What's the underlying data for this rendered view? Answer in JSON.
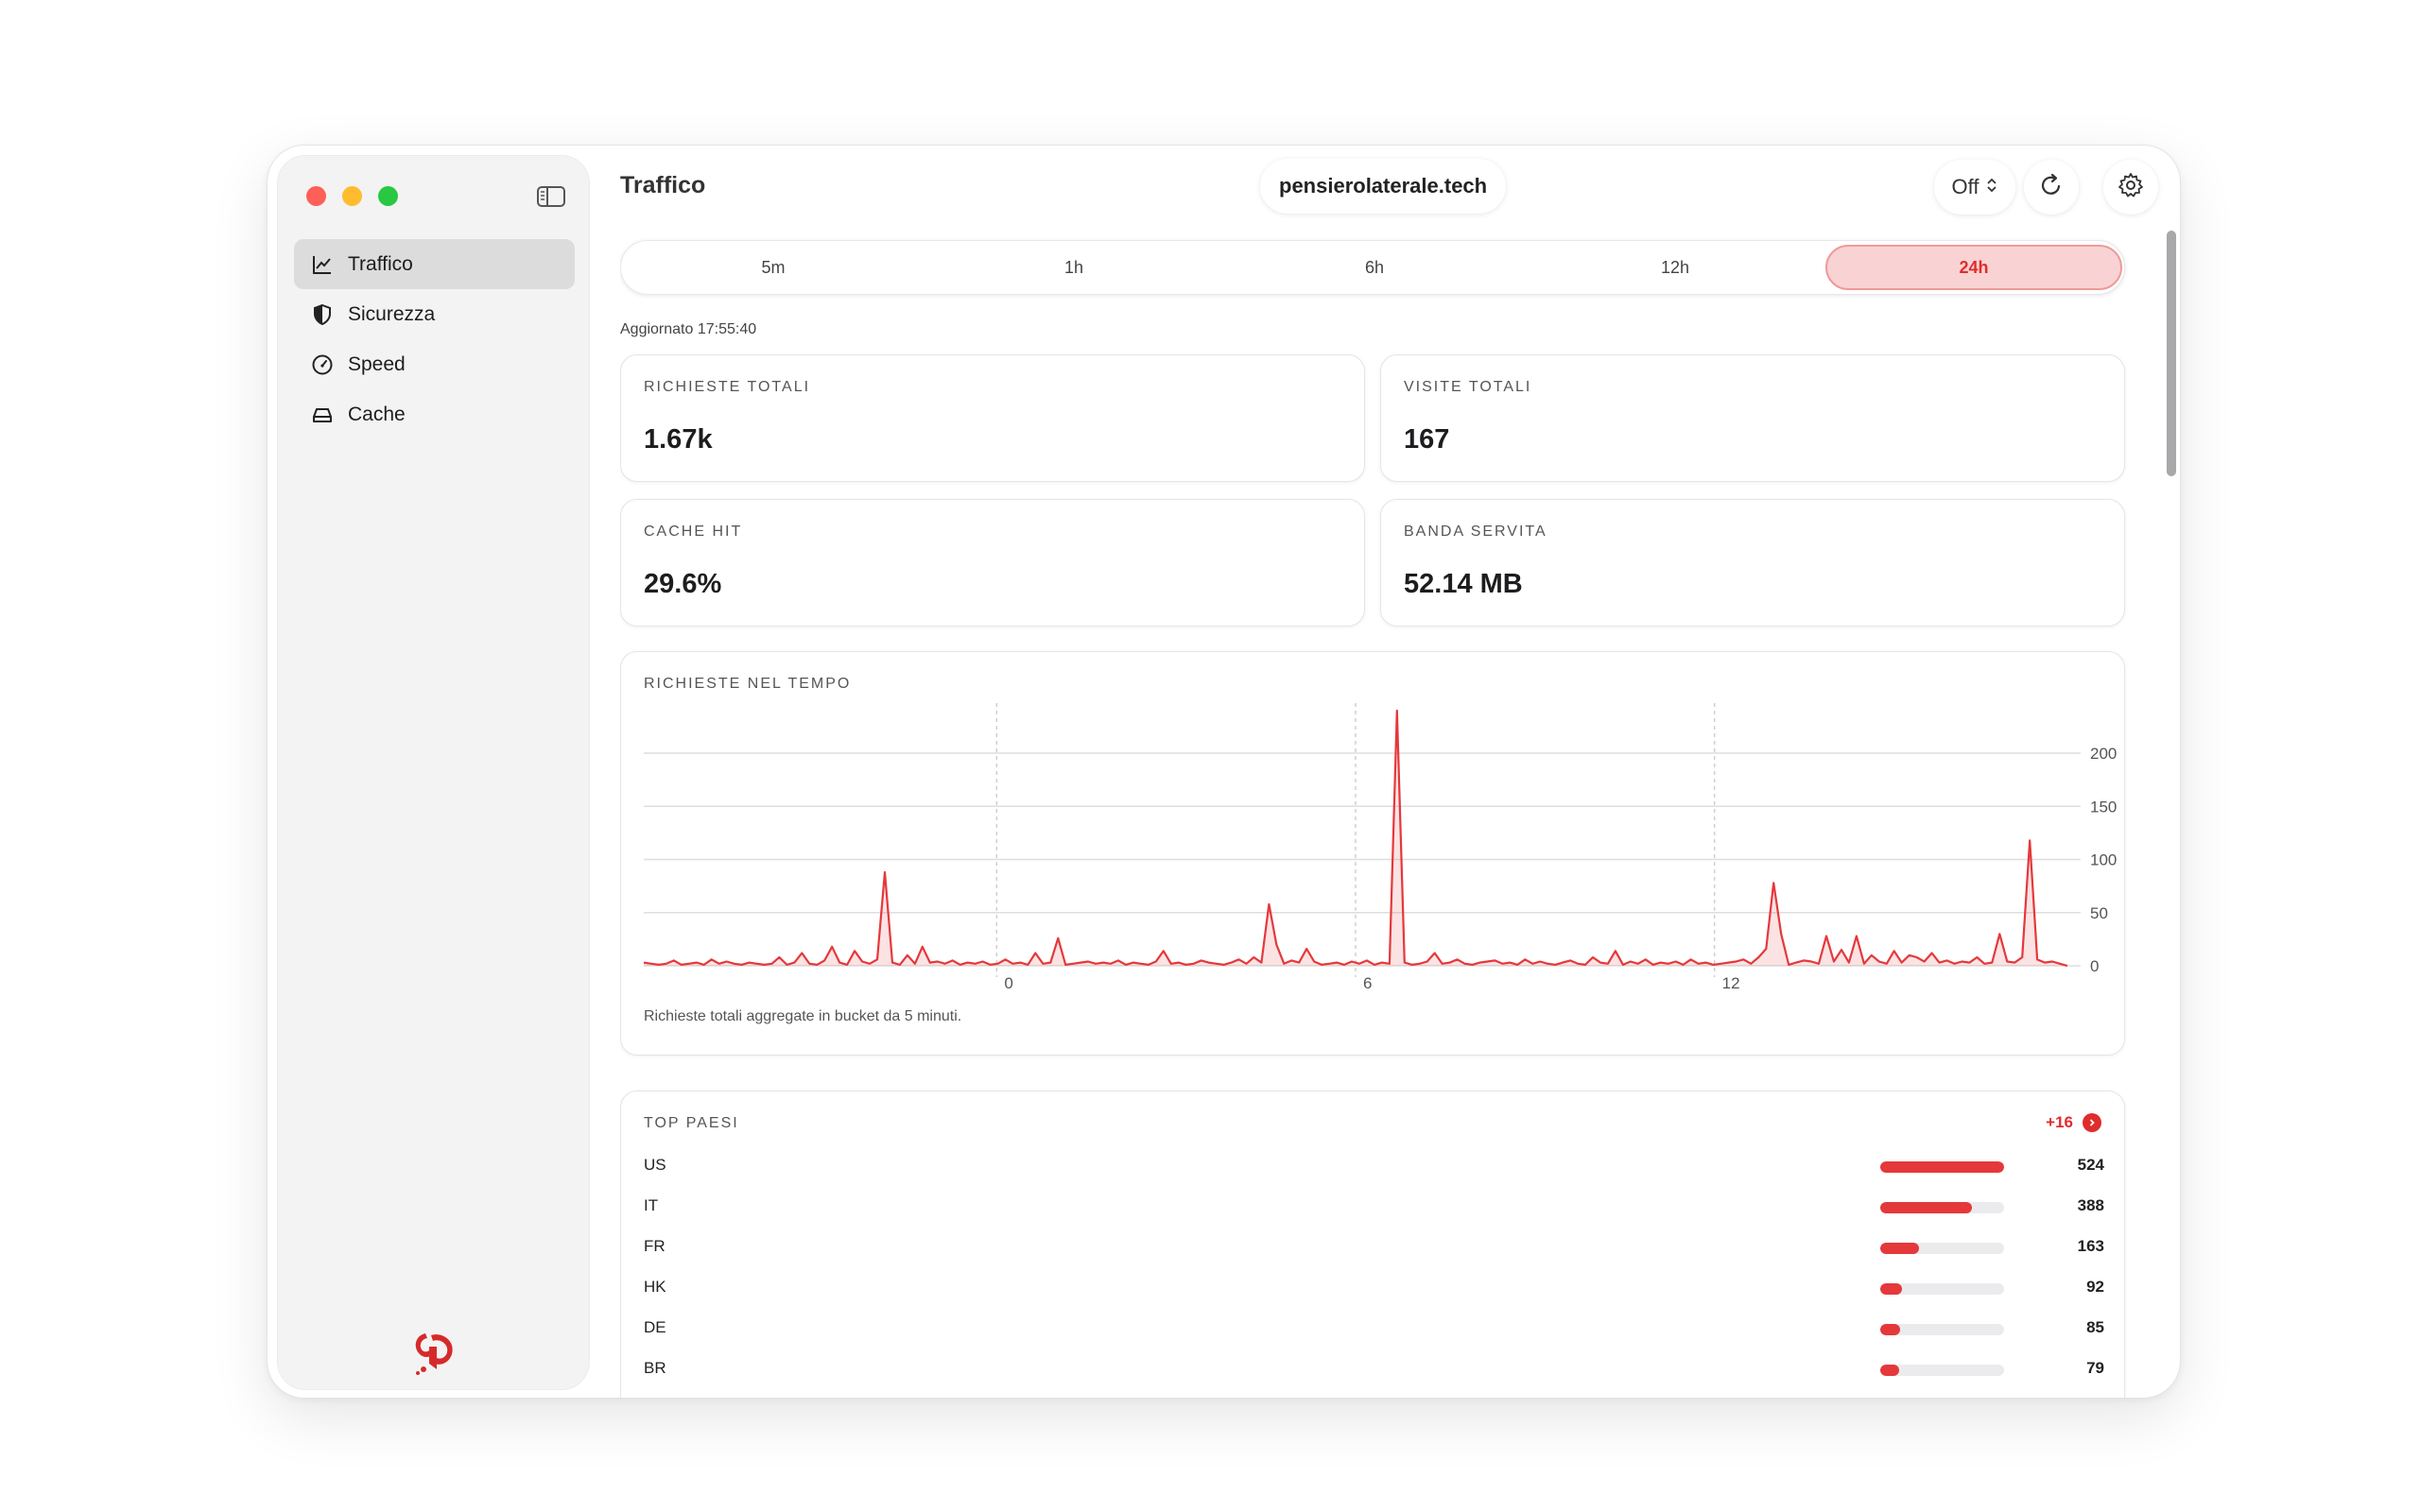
{
  "window": {
    "title": "Traffico",
    "domain": "pensierolaterale.tech"
  },
  "controls": {
    "toggle_value": "Off"
  },
  "sidebar": {
    "items": [
      {
        "label": "Traffico",
        "icon": "chart-line-icon",
        "active": true
      },
      {
        "label": "Sicurezza",
        "icon": "shield-icon",
        "active": false
      },
      {
        "label": "Speed",
        "icon": "gauge-icon",
        "active": false
      },
      {
        "label": "Cache",
        "icon": "drive-icon",
        "active": false
      }
    ]
  },
  "ranges": {
    "options": [
      "5m",
      "1h",
      "6h",
      "12h",
      "24h"
    ],
    "selected": "24h"
  },
  "updated": "Aggiornato 17:55:40",
  "stats": {
    "total_requests": {
      "label": "RICHIESTE TOTALI",
      "value": "1.67k"
    },
    "total_visits": {
      "label": "VISITE TOTALI",
      "value": "167"
    },
    "cache_hit": {
      "label": "CACHE HIT",
      "value": "29.6%"
    },
    "bandwidth": {
      "label": "BANDA SERVITA",
      "value": "52.14 MB"
    }
  },
  "chart": {
    "label": "RICHIESTE NEL TEMPO",
    "caption": "Richieste totali aggregate in bucket da 5 minuti."
  },
  "chart_data": {
    "type": "area",
    "title": "RICHIESTE NEL TEMPO",
    "xlabel": "",
    "ylabel": "",
    "ylim": [
      0,
      240
    ],
    "yticks": [
      0,
      50,
      100,
      150,
      200
    ],
    "xticks": [
      {
        "label": "0",
        "hour": 0
      },
      {
        "label": "6",
        "hour": 6
      },
      {
        "label": "12",
        "hour": 12
      }
    ],
    "grid": true,
    "color": "#e5383b",
    "x_start_hour": -5.9,
    "x_end_hour": 17.9,
    "y": [
      3,
      2,
      1,
      2,
      5,
      1,
      2,
      3,
      1,
      6,
      2,
      4,
      2,
      1,
      3,
      2,
      1,
      2,
      8,
      1,
      3,
      12,
      2,
      1,
      5,
      18,
      3,
      1,
      14,
      4,
      2,
      6,
      88,
      3,
      1,
      10,
      2,
      18,
      3,
      4,
      2,
      5,
      1,
      3,
      2,
      4,
      1,
      2,
      6,
      2,
      3,
      1,
      12,
      2,
      3,
      26,
      1,
      2,
      3,
      4,
      2,
      3,
      2,
      5,
      1,
      3,
      2,
      1,
      4,
      14,
      2,
      3,
      1,
      2,
      5,
      3,
      2,
      1,
      3,
      6,
      2,
      8,
      3,
      58,
      20,
      2,
      5,
      3,
      16,
      4,
      1,
      2,
      3,
      1,
      4,
      2,
      5,
      1,
      3,
      2,
      250,
      3,
      1,
      2,
      4,
      12,
      2,
      3,
      6,
      2,
      1,
      3,
      4,
      5,
      2,
      3,
      1,
      6,
      2,
      4,
      2,
      1,
      3,
      5,
      2,
      1,
      8,
      3,
      2,
      14,
      1,
      4,
      2,
      6,
      1,
      3,
      2,
      4,
      1,
      6,
      2,
      3,
      1,
      2,
      3,
      4,
      6,
      2,
      8,
      16,
      78,
      30,
      1,
      3,
      5,
      4,
      2,
      28,
      4,
      15,
      3,
      28,
      2,
      10,
      4,
      2,
      14,
      3,
      10,
      8,
      4,
      12,
      3,
      5,
      2,
      4,
      3,
      8,
      2,
      3,
      30,
      4,
      3,
      8,
      118,
      6,
      3,
      4,
      2,
      0
    ]
  },
  "countries": {
    "label": "TOP PAESI",
    "more": "+16",
    "max": 524,
    "rows": [
      {
        "code": "US",
        "value": 524
      },
      {
        "code": "IT",
        "value": 388
      },
      {
        "code": "FR",
        "value": 163
      },
      {
        "code": "HK",
        "value": 92
      },
      {
        "code": "DE",
        "value": 85
      },
      {
        "code": "BR",
        "value": 79
      }
    ]
  },
  "colors": {
    "accent": "#e5383b",
    "accent_light": "#f9d3d3"
  }
}
